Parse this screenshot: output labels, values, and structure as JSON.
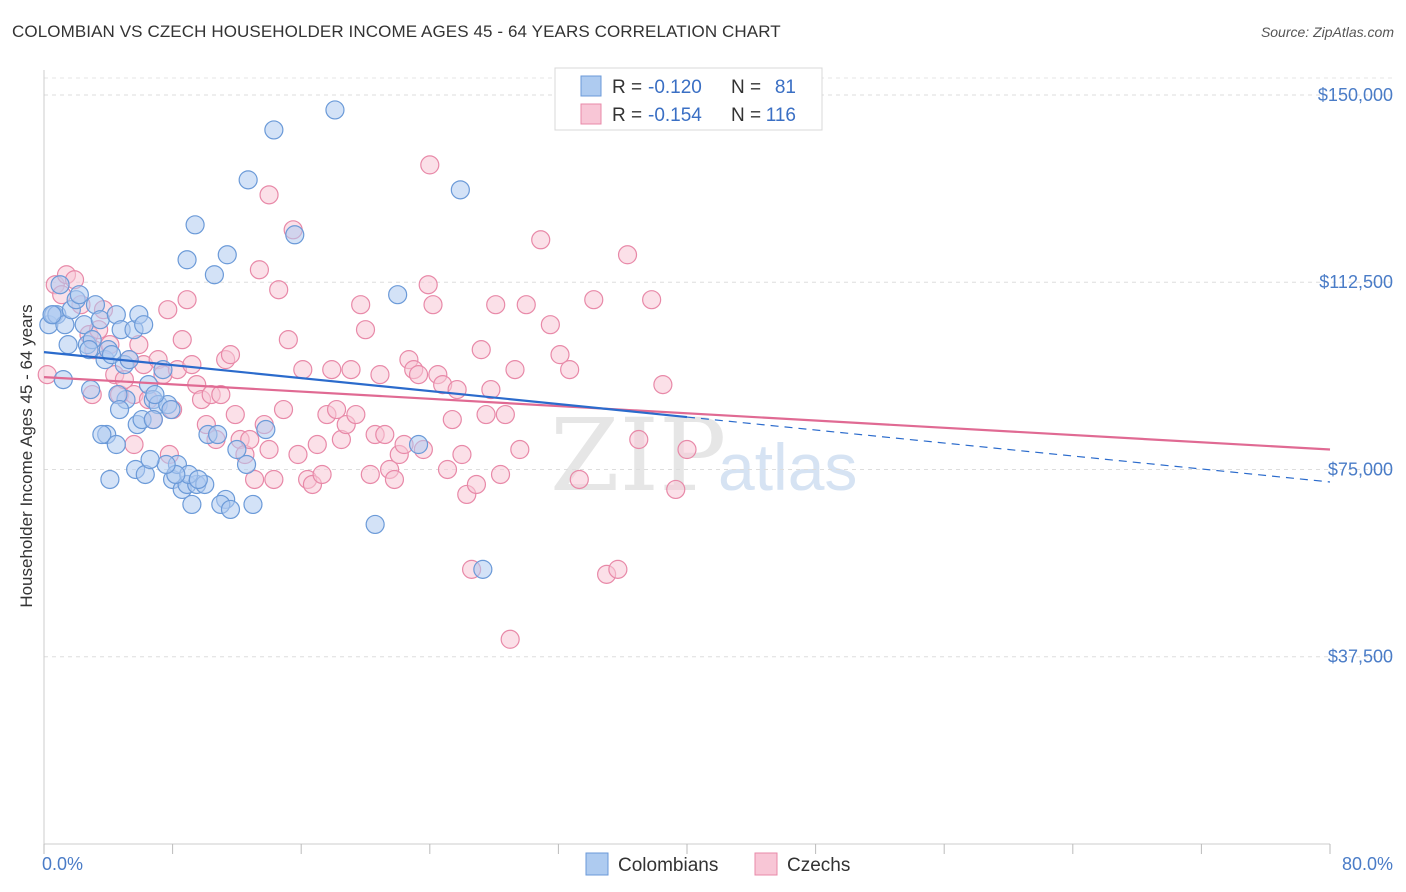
{
  "header": {
    "title": "COLOMBIAN VS CZECH HOUSEHOLDER INCOME AGES 45 - 64 YEARS CORRELATION CHART",
    "source": "Source: ZipAtlas.com"
  },
  "watermark": {
    "zip": "ZIP",
    "atlas": "atlas"
  },
  "legend": {
    "r_label": "R =",
    "n_label": "N =",
    "entries": [
      {
        "r": "-0.120",
        "n": "81"
      },
      {
        "r": "-0.154",
        "n": "116"
      }
    ]
  },
  "colors": {
    "colombians_fill": "#aecbf0",
    "colombians_stroke": "#6b9ad8",
    "colombians_line": "#2b6bcc",
    "czechs_fill": "#f8c6d6",
    "czechs_stroke": "#e889a8",
    "czechs_line": "#e06a93"
  },
  "chart_data": {
    "type": "scatter",
    "title": "COLOMBIAN VS CZECH HOUSEHOLDER INCOME AGES 45 - 64 YEARS CORRELATION CHART",
    "xlabel": "",
    "ylabel": "Householder Income Ages 45 - 64 years",
    "xlim": [
      0,
      80
    ],
    "ylim": [
      0,
      155000
    ],
    "x_tick_labels": [
      "0.0%",
      "80.0%"
    ],
    "y_ticks": [
      37500,
      75000,
      112500,
      150000
    ],
    "y_tick_labels": [
      "$37,500",
      "$75,000",
      "$112,500",
      "$150,000"
    ],
    "grid": true,
    "legend_position": "top-center",
    "series": [
      {
        "name": "Colombians",
        "r": -0.12,
        "n": 81,
        "trend": {
          "x0": 0,
          "y0": 98500,
          "x1": 40,
          "y1": 85500,
          "dash_to_x": 80,
          "dash_to_y": 72500
        },
        "points": [
          [
            0.3,
            104
          ],
          [
            0.6,
            106
          ],
          [
            0.8,
            106
          ],
          [
            1.0,
            112
          ],
          [
            1.3,
            104
          ],
          [
            1.5,
            100
          ],
          [
            1.7,
            107
          ],
          [
            2.0,
            109
          ],
          [
            2.2,
            110
          ],
          [
            2.5,
            104
          ],
          [
            2.7,
            100
          ],
          [
            3.0,
            101
          ],
          [
            3.2,
            108
          ],
          [
            3.5,
            105
          ],
          [
            0.5,
            106
          ],
          [
            1.2,
            93
          ],
          [
            3.8,
            97
          ],
          [
            4.0,
            99
          ],
          [
            4.2,
            98
          ],
          [
            4.5,
            106
          ],
          [
            4.8,
            103
          ],
          [
            5.0,
            96
          ],
          [
            5.3,
            97
          ],
          [
            5.6,
            103
          ],
          [
            5.9,
            106
          ],
          [
            6.2,
            104
          ],
          [
            2.8,
            99
          ],
          [
            6.5,
            92
          ],
          [
            6.8,
            89
          ],
          [
            7.1,
            88
          ],
          [
            5.1,
            89
          ],
          [
            7.4,
            95
          ],
          [
            7.7,
            88
          ],
          [
            8.0,
            73
          ],
          [
            8.3,
            76
          ],
          [
            8.6,
            71
          ],
          [
            8.9,
            72
          ],
          [
            9.2,
            68
          ],
          [
            9.5,
            72
          ],
          [
            5.8,
            84
          ],
          [
            10.2,
            82
          ],
          [
            10.8,
            82
          ],
          [
            11.3,
            69
          ],
          [
            12.6,
            76
          ],
          [
            3.9,
            82
          ],
          [
            4.6,
            90
          ],
          [
            6.1,
            85
          ],
          [
            4.1,
            73
          ],
          [
            7.9,
            87
          ],
          [
            6.8,
            85
          ],
          [
            9.0,
            74
          ],
          [
            3.6,
            82
          ],
          [
            5.7,
            75
          ],
          [
            6.3,
            74
          ],
          [
            8.2,
            74
          ],
          [
            4.7,
            87
          ],
          [
            10.0,
            72
          ],
          [
            11.0,
            68
          ],
          [
            12.0,
            79
          ],
          [
            7.6,
            76
          ],
          [
            6.9,
            90
          ],
          [
            2.9,
            91
          ],
          [
            6.6,
            77
          ],
          [
            4.5,
            80
          ],
          [
            9.6,
            73
          ],
          [
            11.6,
            67
          ],
          [
            13.0,
            68
          ],
          [
            13.8,
            83
          ],
          [
            20.6,
            64
          ],
          [
            18.1,
            147
          ],
          [
            14.3,
            143
          ],
          [
            12.7,
            133
          ],
          [
            15.6,
            122
          ],
          [
            22.0,
            110
          ],
          [
            25.9,
            131
          ],
          [
            27.3,
            55
          ],
          [
            23.3,
            80
          ],
          [
            11.4,
            118
          ],
          [
            9.4,
            124
          ],
          [
            10.6,
            114
          ],
          [
            8.9,
            117
          ]
        ]
      },
      {
        "name": "Czechs",
        "r": -0.154,
        "n": 116,
        "trend": {
          "x0": 0,
          "y0": 93500,
          "x1": 80,
          "y1": 79000
        },
        "points": [
          [
            0.2,
            94
          ],
          [
            0.7,
            112
          ],
          [
            1.1,
            110
          ],
          [
            1.4,
            114
          ],
          [
            1.9,
            113
          ],
          [
            2.3,
            108
          ],
          [
            2.8,
            102
          ],
          [
            3.1,
            99
          ],
          [
            3.4,
            103
          ],
          [
            3.7,
            107
          ],
          [
            4.1,
            100
          ],
          [
            4.4,
            94
          ],
          [
            4.7,
            90
          ],
          [
            5.0,
            93
          ],
          [
            5.3,
            97
          ],
          [
            5.6,
            90
          ],
          [
            5.9,
            100
          ],
          [
            6.2,
            96
          ],
          [
            6.5,
            89
          ],
          [
            6.8,
            85
          ],
          [
            7.1,
            97
          ],
          [
            7.4,
            94
          ],
          [
            7.7,
            107
          ],
          [
            8.0,
            87
          ],
          [
            8.3,
            95
          ],
          [
            8.6,
            101
          ],
          [
            8.9,
            109
          ],
          [
            9.2,
            96
          ],
          [
            9.5,
            92
          ],
          [
            9.8,
            89
          ],
          [
            10.1,
            84
          ],
          [
            10.4,
            90
          ],
          [
            10.7,
            81
          ],
          [
            11.0,
            90
          ],
          [
            11.3,
            97
          ],
          [
            11.6,
            98
          ],
          [
            11.9,
            86
          ],
          [
            12.2,
            81
          ],
          [
            12.5,
            78
          ],
          [
            12.8,
            81
          ],
          [
            13.1,
            73
          ],
          [
            13.4,
            115
          ],
          [
            13.7,
            84
          ],
          [
            14.0,
            79
          ],
          [
            14.3,
            73
          ],
          [
            14.6,
            111
          ],
          [
            14.9,
            87
          ],
          [
            15.2,
            101
          ],
          [
            15.5,
            123
          ],
          [
            15.8,
            78
          ],
          [
            16.1,
            95
          ],
          [
            16.4,
            73
          ],
          [
            16.7,
            72
          ],
          [
            17.0,
            80
          ],
          [
            17.3,
            74
          ],
          [
            17.6,
            86
          ],
          [
            17.9,
            95
          ],
          [
            18.2,
            87
          ],
          [
            18.5,
            81
          ],
          [
            18.8,
            84
          ],
          [
            19.1,
            95
          ],
          [
            19.4,
            86
          ],
          [
            19.7,
            108
          ],
          [
            20.0,
            103
          ],
          [
            20.3,
            74
          ],
          [
            20.6,
            82
          ],
          [
            20.9,
            94
          ],
          [
            21.2,
            82
          ],
          [
            21.5,
            75
          ],
          [
            21.8,
            73
          ],
          [
            22.1,
            78
          ],
          [
            22.4,
            80
          ],
          [
            22.7,
            97
          ],
          [
            23.0,
            95
          ],
          [
            23.3,
            94
          ],
          [
            23.6,
            79
          ],
          [
            23.9,
            112
          ],
          [
            24.2,
            108
          ],
          [
            24.5,
            94
          ],
          [
            24.8,
            92
          ],
          [
            25.1,
            75
          ],
          [
            25.4,
            85
          ],
          [
            25.7,
            91
          ],
          [
            26.0,
            78
          ],
          [
            26.3,
            70
          ],
          [
            26.6,
            55
          ],
          [
            26.9,
            72
          ],
          [
            27.2,
            99
          ],
          [
            27.5,
            86
          ],
          [
            27.8,
            91
          ],
          [
            28.1,
            108
          ],
          [
            28.4,
            74
          ],
          [
            28.7,
            86
          ],
          [
            29.0,
            41
          ],
          [
            29.3,
            95
          ],
          [
            29.6,
            79
          ],
          [
            30.0,
            108
          ],
          [
            30.9,
            121
          ],
          [
            31.5,
            104
          ],
          [
            32.1,
            98
          ],
          [
            32.7,
            95
          ],
          [
            33.3,
            73
          ],
          [
            34.2,
            109
          ],
          [
            35.0,
            54
          ],
          [
            35.7,
            55
          ],
          [
            36.3,
            118
          ],
          [
            37.0,
            81
          ],
          [
            37.8,
            109
          ],
          [
            38.5,
            92
          ],
          [
            39.3,
            71
          ],
          [
            40.0,
            79
          ],
          [
            3.0,
            90
          ],
          [
            5.6,
            80
          ],
          [
            7.8,
            78
          ],
          [
            24.0,
            136
          ],
          [
            14.0,
            130
          ]
        ]
      }
    ]
  }
}
